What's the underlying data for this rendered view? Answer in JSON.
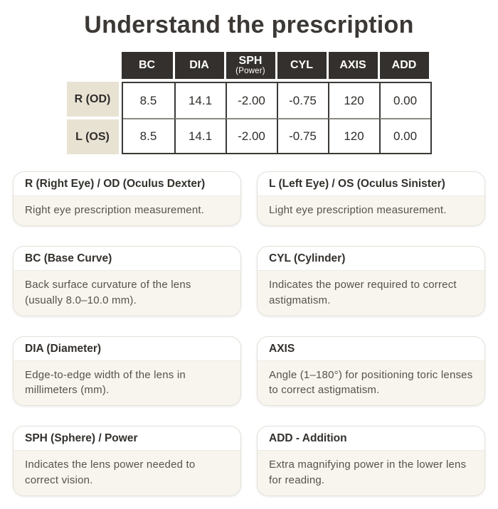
{
  "page": {
    "title": "Understand the prescription"
  },
  "colors": {
    "header_bg": "#33302d",
    "header_text": "#ffffff",
    "label_bg": "#e8e2d3",
    "card_body_bg": "#f7f5ee",
    "text_dark": "#3b3835",
    "text_body": "#55524d",
    "table_border": "#3b3936"
  },
  "table": {
    "headers": [
      {
        "label": "BC",
        "sublabel": ""
      },
      {
        "label": "DIA",
        "sublabel": ""
      },
      {
        "label": "SPH",
        "sublabel": "(Power)"
      },
      {
        "label": "CYL",
        "sublabel": ""
      },
      {
        "label": "AXIS",
        "sublabel": ""
      },
      {
        "label": "ADD",
        "sublabel": ""
      }
    ],
    "rows": [
      {
        "label": "R (OD)",
        "values": [
          "8.5",
          "14.1",
          "-2.00",
          "-0.75",
          "120",
          "0.00"
        ]
      },
      {
        "label": "L (OS)",
        "values": [
          "8.5",
          "14.1",
          "-2.00",
          "-0.75",
          "120",
          "0.00"
        ]
      }
    ]
  },
  "cards": [
    {
      "title": "R (Right Eye) / OD (Oculus Dexter)",
      "description": "Right eye prescription measurement."
    },
    {
      "title": "L (Left Eye) / OS (Oculus Sinister)",
      "description": "Light eye prescription measurement."
    },
    {
      "title": "BC (Base Curve)",
      "description": "Back surface curvature of the lens (usually 8.0–10.0 mm)."
    },
    {
      "title": "CYL (Cylinder)",
      "description": "Indicates the power required to correct astigmatism."
    },
    {
      "title": "DIA (Diameter)",
      "description": "Edge-to-edge width of the lens in millimeters (mm)."
    },
    {
      "title": "AXIS",
      "description": "Angle (1–180°) for positioning toric lenses to correct astigmatism."
    },
    {
      "title": "SPH (Sphere) / Power",
      "description": "Indicates the lens power needed to correct vision."
    },
    {
      "title": "ADD - Addition",
      "description": "Extra magnifying power in the lower lens for reading."
    }
  ]
}
